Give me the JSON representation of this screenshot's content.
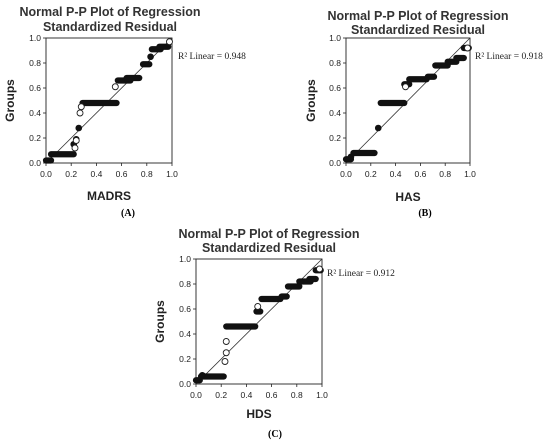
{
  "chart_data": [
    {
      "type": "scatter",
      "title": "Normal P-P Plot of Regression",
      "subtitle": "Standardized Residual",
      "xlabel": "MADRS",
      "ylabel": "Groups",
      "xlim": [
        0.0,
        1.0
      ],
      "ylim": [
        0.0,
        1.0
      ],
      "x_ticks": [
        "0.0",
        "0.2",
        "0.4",
        "0.6",
        "0.8",
        "1.0"
      ],
      "y_ticks": [
        "0.0",
        "0.2",
        "0.4",
        "0.6",
        "0.8",
        "1.0"
      ],
      "r2_label": "R² Linear = 0.948",
      "caption": "(A)",
      "reference_line": [
        [
          0,
          0
        ],
        [
          1,
          1
        ]
      ],
      "filled_segments": [
        {
          "x_start": 0.0,
          "x_end": 0.04,
          "y": 0.02
        },
        {
          "x_start": 0.04,
          "x_end": 0.22,
          "y": 0.07
        },
        {
          "x_start": 0.29,
          "x_end": 0.56,
          "y": 0.48
        },
        {
          "x_start": 0.57,
          "x_end": 0.67,
          "y": 0.66
        },
        {
          "x_start": 0.64,
          "x_end": 0.74,
          "y": 0.68
        },
        {
          "x_start": 0.77,
          "x_end": 0.82,
          "y": 0.79
        },
        {
          "x_start": 0.84,
          "x_end": 0.91,
          "y": 0.91
        },
        {
          "x_start": 0.9,
          "x_end": 0.97,
          "y": 0.93
        }
      ],
      "filled_points": [
        [
          0.22,
          0.15
        ],
        [
          0.24,
          0.19
        ],
        [
          0.26,
          0.28
        ],
        [
          0.83,
          0.85
        ]
      ],
      "open_points": [
        [
          0.23,
          0.12
        ],
        [
          0.24,
          0.18
        ],
        [
          0.27,
          0.4
        ],
        [
          0.28,
          0.45
        ],
        [
          0.55,
          0.61
        ],
        [
          0.98,
          0.97
        ]
      ]
    },
    {
      "type": "scatter",
      "title": "Normal P-P Plot of Regression",
      "subtitle": "Standardized Residual",
      "xlabel": "HAS",
      "ylabel": "Groups",
      "xlim": [
        0.0,
        1.0
      ],
      "ylim": [
        0.0,
        1.0
      ],
      "x_ticks": [
        "0.0",
        "0.2",
        "0.4",
        "0.6",
        "0.8",
        "1.0"
      ],
      "y_ticks": [
        "0.0",
        "0.2",
        "0.4",
        "0.6",
        "0.8",
        "1.0"
      ],
      "r2_label": "R² Linear = 0.918",
      "caption": "(B)",
      "reference_line": [
        [
          0,
          0
        ],
        [
          1,
          1
        ]
      ],
      "filled_segments": [
        {
          "x_start": 0.0,
          "x_end": 0.04,
          "y": 0.03
        },
        {
          "x_start": 0.06,
          "x_end": 0.23,
          "y": 0.08
        },
        {
          "x_start": 0.28,
          "x_end": 0.47,
          "y": 0.48
        },
        {
          "x_start": 0.47,
          "x_end": 0.51,
          "y": 0.63
        },
        {
          "x_start": 0.51,
          "x_end": 0.65,
          "y": 0.67
        },
        {
          "x_start": 0.66,
          "x_end": 0.71,
          "y": 0.69
        },
        {
          "x_start": 0.72,
          "x_end": 0.82,
          "y": 0.78
        },
        {
          "x_start": 0.82,
          "x_end": 0.89,
          "y": 0.81
        },
        {
          "x_start": 0.89,
          "x_end": 0.95,
          "y": 0.84
        },
        {
          "x_start": 0.95,
          "x_end": 0.99,
          "y": 0.92
        }
      ],
      "filled_points": [
        [
          0.04,
          0.05
        ],
        [
          0.26,
          0.28
        ]
      ],
      "open_points": [
        [
          0.48,
          0.61
        ],
        [
          0.98,
          0.92
        ]
      ]
    },
    {
      "type": "scatter",
      "title": "Normal P-P Plot of Regression",
      "subtitle": "Standardized Residual",
      "xlabel": "HDS",
      "ylabel": "Groups",
      "xlim": [
        0.0,
        1.0
      ],
      "ylim": [
        0.0,
        1.0
      ],
      "x_ticks": [
        "0.0",
        "0.2",
        "0.4",
        "0.6",
        "0.8",
        "1.0"
      ],
      "y_ticks": [
        "0.0",
        "0.2",
        "0.4",
        "0.6",
        "0.8",
        "1.0"
      ],
      "r2_label": "R² Linear = 0.912",
      "caption": "(C)",
      "reference_line": [
        [
          0,
          0
        ],
        [
          1,
          1
        ]
      ],
      "filled_segments": [
        {
          "x_start": 0.0,
          "x_end": 0.03,
          "y": 0.03
        },
        {
          "x_start": 0.04,
          "x_end": 0.22,
          "y": 0.06
        },
        {
          "x_start": 0.24,
          "x_end": 0.47,
          "y": 0.46
        },
        {
          "x_start": 0.48,
          "x_end": 0.51,
          "y": 0.58
        },
        {
          "x_start": 0.52,
          "x_end": 0.67,
          "y": 0.68
        },
        {
          "x_start": 0.68,
          "x_end": 0.72,
          "y": 0.7
        },
        {
          "x_start": 0.73,
          "x_end": 0.82,
          "y": 0.78
        },
        {
          "x_start": 0.82,
          "x_end": 0.91,
          "y": 0.82
        },
        {
          "x_start": 0.9,
          "x_end": 0.95,
          "y": 0.84
        },
        {
          "x_start": 0.95,
          "x_end": 0.99,
          "y": 0.91
        }
      ],
      "filled_points": [
        [
          0.05,
          0.07
        ]
      ],
      "open_points": [
        [
          0.23,
          0.18
        ],
        [
          0.24,
          0.25
        ],
        [
          0.24,
          0.34
        ],
        [
          0.49,
          0.62
        ],
        [
          0.98,
          0.92
        ]
      ]
    }
  ]
}
